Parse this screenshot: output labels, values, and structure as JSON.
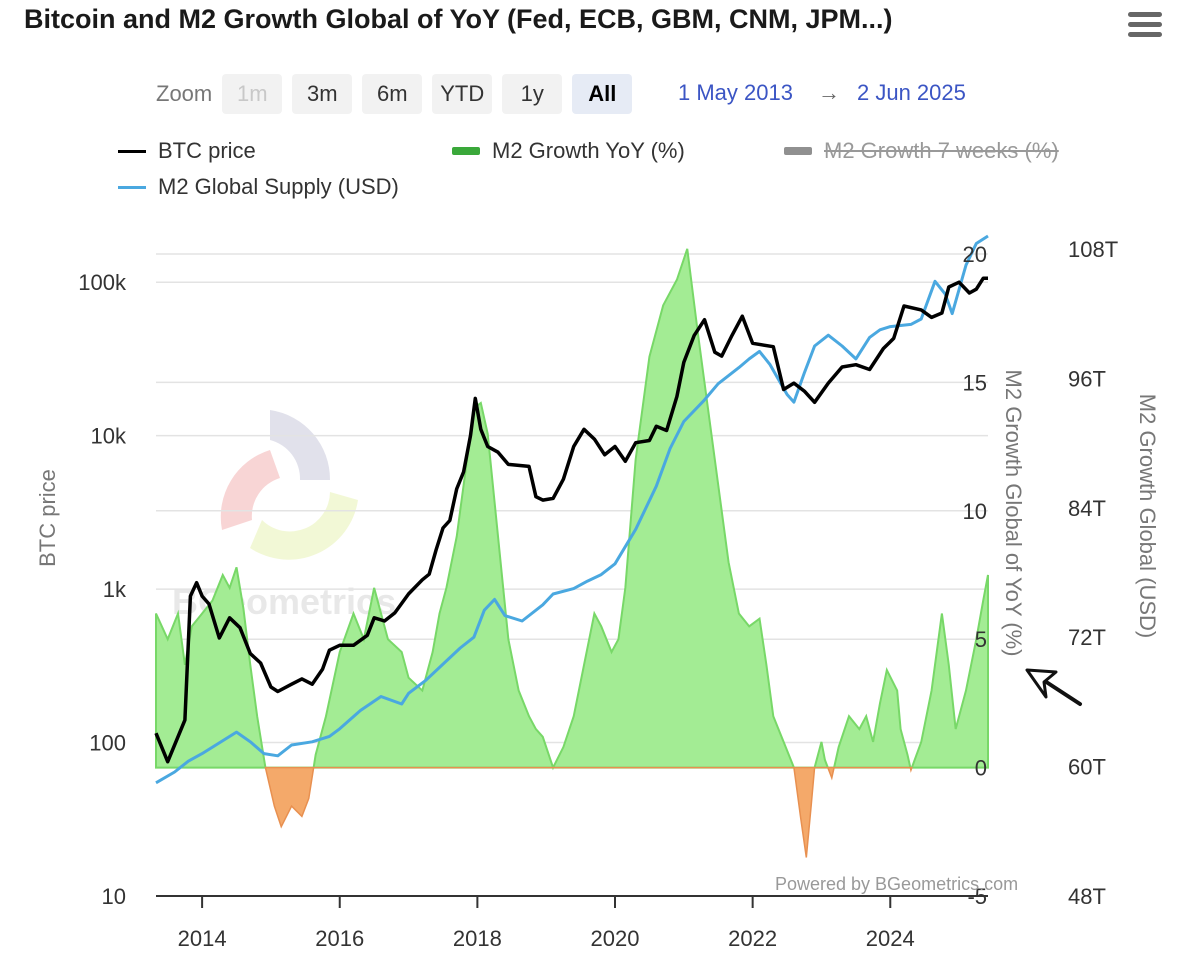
{
  "header": {
    "title": "Bitcoin and M2 Growth Global of YoY (Fed, ECB, GBM, CNM, JPM...)"
  },
  "icons": {
    "menu": "hamburger-menu-icon",
    "annotation": "arrow-pointer-icon"
  },
  "zoom": {
    "label": "Zoom",
    "buttons": [
      {
        "label": "1m",
        "state": "disabled"
      },
      {
        "label": "3m",
        "state": "normal"
      },
      {
        "label": "6m",
        "state": "normal"
      },
      {
        "label": "YTD",
        "state": "normal"
      },
      {
        "label": "1y",
        "state": "normal"
      },
      {
        "label": "All",
        "state": "active"
      }
    ],
    "from": "1 May 2013",
    "arrow": "→",
    "to": "2 Jun 2025"
  },
  "legend": [
    {
      "label": "BTC price",
      "color": "#000000",
      "kind": "line",
      "hidden": false
    },
    {
      "label": "M2 Growth YoY (%)",
      "color": "#3aa83a",
      "kind": "bar",
      "hidden": false
    },
    {
      "label": "M2 Growth 7 weeks (%)",
      "color": "#808080",
      "kind": "bar",
      "hidden": true
    },
    {
      "label": "M2 Global Supply (USD)",
      "color": "#4aa8e0",
      "kind": "line",
      "hidden": false
    }
  ],
  "credits": "Powered by BGeometrics.com",
  "watermark": "BGeometrics",
  "chart_data": {
    "type": "line",
    "xlim": [
      2013.33,
      2025.42
    ],
    "x_ticks": [
      "2014",
      "2016",
      "2018",
      "2020",
      "2022",
      "2024"
    ],
    "y_left": {
      "label": "BTC price",
      "scale": "log",
      "range": [
        10,
        200000
      ],
      "ticks": [
        "10",
        "100",
        "1k",
        "10k",
        "100k"
      ]
    },
    "y_right1": {
      "label": "M2 Growth Global of YoY (%)",
      "range": [
        -5,
        20.7
      ],
      "ticks": [
        "-5",
        "0",
        "5",
        "10",
        "15",
        "20"
      ]
    },
    "y_right2": {
      "label": "M2 Growth Global (USD)",
      "range": [
        48,
        109.2
      ],
      "ticks": [
        "48T",
        "60T",
        "72T",
        "84T",
        "96T",
        "108T"
      ]
    },
    "colors": {
      "btc": "#000000",
      "m2_supply": "#4aa8e0",
      "growth_pos": "#a3ec94",
      "growth_pos_line": "#78d868",
      "growth_neg": "#f4a96a",
      "grid": "#e3e3e3"
    },
    "series": [
      {
        "name": "BTC price",
        "axis": "y_left",
        "points": [
          [
            2013.33,
            115
          ],
          [
            2013.5,
            75
          ],
          [
            2013.75,
            140
          ],
          [
            2013.83,
            900
          ],
          [
            2013.92,
            1100
          ],
          [
            2014.0,
            900
          ],
          [
            2014.1,
            800
          ],
          [
            2014.25,
            480
          ],
          [
            2014.4,
            650
          ],
          [
            2014.55,
            560
          ],
          [
            2014.7,
            380
          ],
          [
            2014.85,
            330
          ],
          [
            2015.0,
            230
          ],
          [
            2015.1,
            215
          ],
          [
            2015.3,
            240
          ],
          [
            2015.45,
            260
          ],
          [
            2015.6,
            240
          ],
          [
            2015.75,
            300
          ],
          [
            2015.85,
            400
          ],
          [
            2016.0,
            430
          ],
          [
            2016.2,
            430
          ],
          [
            2016.4,
            500
          ],
          [
            2016.5,
            650
          ],
          [
            2016.65,
            620
          ],
          [
            2016.8,
            700
          ],
          [
            2017.0,
            930
          ],
          [
            2017.2,
            1150
          ],
          [
            2017.3,
            1250
          ],
          [
            2017.4,
            1800
          ],
          [
            2017.5,
            2500
          ],
          [
            2017.6,
            2800
          ],
          [
            2017.7,
            4500
          ],
          [
            2017.8,
            5800
          ],
          [
            2017.9,
            10000
          ],
          [
            2017.97,
            17500
          ],
          [
            2018.05,
            11000
          ],
          [
            2018.15,
            8500
          ],
          [
            2018.3,
            7800
          ],
          [
            2018.45,
            6500
          ],
          [
            2018.6,
            6400
          ],
          [
            2018.75,
            6300
          ],
          [
            2018.85,
            4000
          ],
          [
            2018.95,
            3800
          ],
          [
            2019.1,
            3900
          ],
          [
            2019.25,
            5200
          ],
          [
            2019.4,
            8500
          ],
          [
            2019.55,
            11000
          ],
          [
            2019.7,
            9500
          ],
          [
            2019.85,
            7500
          ],
          [
            2020.0,
            8500
          ],
          [
            2020.15,
            6800
          ],
          [
            2020.3,
            9000
          ],
          [
            2020.5,
            9300
          ],
          [
            2020.6,
            11500
          ],
          [
            2020.75,
            10800
          ],
          [
            2020.9,
            18000
          ],
          [
            2021.0,
            30000
          ],
          [
            2021.15,
            45000
          ],
          [
            2021.3,
            57000
          ],
          [
            2021.45,
            35000
          ],
          [
            2021.55,
            33000
          ],
          [
            2021.7,
            45000
          ],
          [
            2021.85,
            60000
          ],
          [
            2022.0,
            40000
          ],
          [
            2022.3,
            38000
          ],
          [
            2022.45,
            20000
          ],
          [
            2022.6,
            22000
          ],
          [
            2022.75,
            19500
          ],
          [
            2022.9,
            16500
          ],
          [
            2023.1,
            22000
          ],
          [
            2023.3,
            28000
          ],
          [
            2023.5,
            29000
          ],
          [
            2023.7,
            27000
          ],
          [
            2023.9,
            37000
          ],
          [
            2024.05,
            43000
          ],
          [
            2024.2,
            70000
          ],
          [
            2024.45,
            66000
          ],
          [
            2024.6,
            59000
          ],
          [
            2024.75,
            63000
          ],
          [
            2024.85,
            93000
          ],
          [
            2025.0,
            100000
          ],
          [
            2025.15,
            85000
          ],
          [
            2025.25,
            90000
          ],
          [
            2025.35,
            106000
          ],
          [
            2025.42,
            106000
          ]
        ]
      },
      {
        "name": "M2 Global Supply (USD)",
        "axis": "y_right2",
        "points": [
          [
            2013.33,
            58.5
          ],
          [
            2013.6,
            59.5
          ],
          [
            2013.8,
            60.5
          ],
          [
            2014.0,
            61.2
          ],
          [
            2014.25,
            62.2
          ],
          [
            2014.5,
            63.2
          ],
          [
            2014.7,
            62.3
          ],
          [
            2014.9,
            61.2
          ],
          [
            2015.1,
            61.0
          ],
          [
            2015.3,
            62.0
          ],
          [
            2015.6,
            62.3
          ],
          [
            2015.85,
            62.8
          ],
          [
            2016.0,
            63.5
          ],
          [
            2016.3,
            65.2
          ],
          [
            2016.6,
            66.5
          ],
          [
            2016.9,
            65.8
          ],
          [
            2017.0,
            66.8
          ],
          [
            2017.25,
            68.0
          ],
          [
            2017.5,
            69.5
          ],
          [
            2017.75,
            71.0
          ],
          [
            2017.95,
            72.0
          ],
          [
            2018.1,
            74.5
          ],
          [
            2018.25,
            75.5
          ],
          [
            2018.4,
            74.0
          ],
          [
            2018.65,
            73.5
          ],
          [
            2018.95,
            75.0
          ],
          [
            2019.1,
            76.0
          ],
          [
            2019.4,
            76.5
          ],
          [
            2019.6,
            77.2
          ],
          [
            2019.8,
            77.8
          ],
          [
            2020.0,
            78.8
          ],
          [
            2020.3,
            82.0
          ],
          [
            2020.6,
            86.0
          ],
          [
            2020.8,
            89.5
          ],
          [
            2021.0,
            92.0
          ],
          [
            2021.3,
            94.0
          ],
          [
            2021.5,
            95.5
          ],
          [
            2021.8,
            97.0
          ],
          [
            2021.95,
            97.8
          ],
          [
            2022.1,
            98.5
          ],
          [
            2022.25,
            97.3
          ],
          [
            2022.5,
            94.5
          ],
          [
            2022.6,
            93.8
          ],
          [
            2022.75,
            96.5
          ],
          [
            2022.9,
            99.0
          ],
          [
            2023.1,
            100.0
          ],
          [
            2023.3,
            99.0
          ],
          [
            2023.5,
            97.8
          ],
          [
            2023.7,
            99.8
          ],
          [
            2023.85,
            100.5
          ],
          [
            2024.0,
            100.8
          ],
          [
            2024.3,
            101.0
          ],
          [
            2024.45,
            101.5
          ],
          [
            2024.65,
            105.0
          ],
          [
            2024.8,
            103.8
          ],
          [
            2024.9,
            102.0
          ],
          [
            2025.1,
            106.5
          ],
          [
            2025.25,
            108.5
          ],
          [
            2025.42,
            109.2
          ]
        ]
      },
      {
        "name": "M2 Growth YoY (%)",
        "axis": "y_right1",
        "points": [
          [
            2013.33,
            6
          ],
          [
            2013.5,
            5
          ],
          [
            2013.65,
            6
          ],
          [
            2013.75,
            4
          ],
          [
            2013.85,
            5.5
          ],
          [
            2014.0,
            6
          ],
          [
            2014.15,
            6.5
          ],
          [
            2014.3,
            7.5
          ],
          [
            2014.4,
            7
          ],
          [
            2014.5,
            7.8
          ],
          [
            2014.6,
            6.2
          ],
          [
            2014.7,
            4
          ],
          [
            2014.8,
            2
          ],
          [
            2014.92,
            0
          ],
          [
            2015.05,
            -1.5
          ],
          [
            2015.15,
            -2.3
          ],
          [
            2015.3,
            -1.5
          ],
          [
            2015.45,
            -1.9
          ],
          [
            2015.55,
            -1.2
          ],
          [
            2015.65,
            0.5
          ],
          [
            2015.8,
            2
          ],
          [
            2016.0,
            4.5
          ],
          [
            2016.2,
            6
          ],
          [
            2016.35,
            5
          ],
          [
            2016.5,
            7
          ],
          [
            2016.7,
            5
          ],
          [
            2016.9,
            4.5
          ],
          [
            2017.0,
            3.5
          ],
          [
            2017.2,
            3
          ],
          [
            2017.35,
            4.5
          ],
          [
            2017.45,
            6
          ],
          [
            2017.55,
            7
          ],
          [
            2017.7,
            9
          ],
          [
            2017.85,
            12
          ],
          [
            2017.95,
            14
          ],
          [
            2018.05,
            14.2
          ],
          [
            2018.15,
            13
          ],
          [
            2018.3,
            9
          ],
          [
            2018.45,
            5
          ],
          [
            2018.6,
            3
          ],
          [
            2018.75,
            2
          ],
          [
            2018.85,
            1.5
          ],
          [
            2018.95,
            1.2
          ],
          [
            2019.1,
            0
          ],
          [
            2019.25,
            0.8
          ],
          [
            2019.4,
            2
          ],
          [
            2019.55,
            4
          ],
          [
            2019.7,
            6
          ],
          [
            2019.8,
            5.5
          ],
          [
            2019.95,
            4.5
          ],
          [
            2020.05,
            5
          ],
          [
            2020.15,
            7
          ],
          [
            2020.3,
            12
          ],
          [
            2020.5,
            16
          ],
          [
            2020.7,
            18
          ],
          [
            2020.9,
            19
          ],
          [
            2021.05,
            20.2
          ],
          [
            2021.2,
            17
          ],
          [
            2021.35,
            14
          ],
          [
            2021.5,
            11
          ],
          [
            2021.65,
            8
          ],
          [
            2021.8,
            6
          ],
          [
            2021.95,
            5.5
          ],
          [
            2022.1,
            5.8
          ],
          [
            2022.2,
            4
          ],
          [
            2022.3,
            2
          ],
          [
            2022.45,
            1
          ],
          [
            2022.6,
            0
          ],
          [
            2022.7,
            -2
          ],
          [
            2022.78,
            -3.5
          ],
          [
            2022.85,
            -1.5
          ],
          [
            2022.9,
            0
          ],
          [
            2023.0,
            1
          ],
          [
            2023.05,
            0.3
          ],
          [
            2023.15,
            -0.4
          ],
          [
            2023.25,
            0.8
          ],
          [
            2023.4,
            2
          ],
          [
            2023.55,
            1.5
          ],
          [
            2023.65,
            2
          ],
          [
            2023.75,
            1
          ],
          [
            2023.85,
            2.5
          ],
          [
            2023.95,
            3.8
          ],
          [
            2024.1,
            3
          ],
          [
            2024.15,
            1.5
          ],
          [
            2024.25,
            0.5
          ],
          [
            2024.3,
            -0.1
          ],
          [
            2024.45,
            1
          ],
          [
            2024.6,
            3
          ],
          [
            2024.75,
            6
          ],
          [
            2024.85,
            4
          ],
          [
            2024.95,
            1.5
          ],
          [
            2025.1,
            3
          ],
          [
            2025.25,
            5
          ],
          [
            2025.35,
            6.5
          ],
          [
            2025.42,
            7.5
          ]
        ]
      }
    ]
  }
}
